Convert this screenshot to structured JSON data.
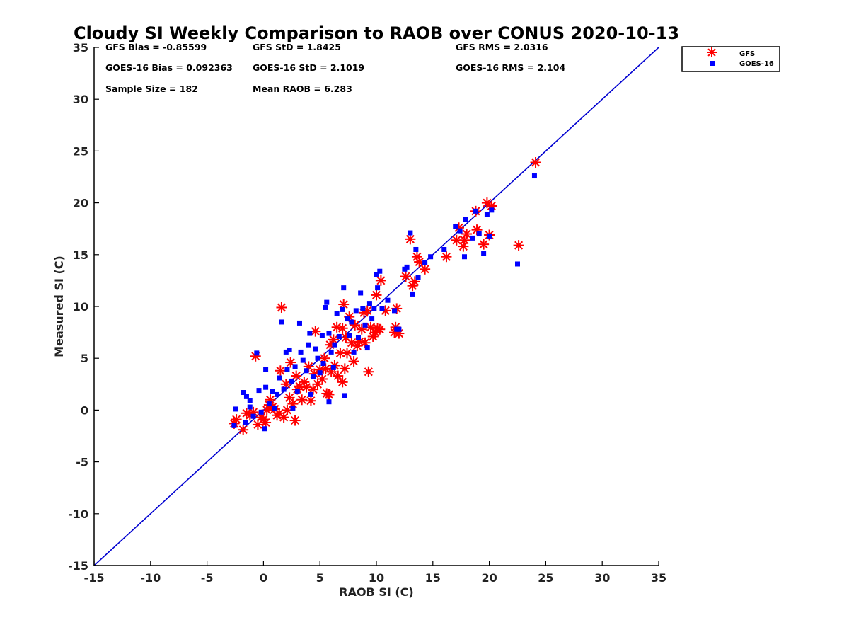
{
  "chart_data": {
    "type": "scatter",
    "title": "Cloudy SI Weekly Comparison to RAOB over CONUS 2020-10-13",
    "xlabel": "RAOB SI (C)",
    "ylabel": "Measured SI (C)",
    "xlim": [
      -15,
      35
    ],
    "ylim": [
      -15,
      35
    ],
    "xticks": [
      -15,
      -10,
      -5,
      0,
      5,
      10,
      15,
      20,
      25,
      30,
      35
    ],
    "yticks": [
      -15,
      -10,
      -5,
      0,
      5,
      10,
      15,
      20,
      25,
      30,
      35
    ],
    "reference_line": {
      "from": [
        -15,
        -15
      ],
      "to": [
        35,
        35
      ],
      "color": "#0000d0"
    },
    "legend_position": "top-right, outside plot",
    "stats": [
      "GFS Bias = -0.85599",
      "GFS StD = 1.8425",
      "GFS RMS = 2.0316",
      "GOES-16 Bias = 0.092363",
      "GOES-16 StD = 2.1019",
      "GOES-16 RMS = 2.104",
      "Sample Size = 182",
      "Mean RAOB = 6.283"
    ],
    "series": [
      {
        "name": "GFS",
        "marker": "asterisk",
        "color": "#ff0000",
        "points": [
          [
            -2.6,
            -1.3
          ],
          [
            -2.4,
            -0.9
          ],
          [
            -1.8,
            -1.9
          ],
          [
            -1.5,
            -0.3
          ],
          [
            -1.2,
            -0.5
          ],
          [
            -0.9,
            -0.2
          ],
          [
            -0.7,
            5.2
          ],
          [
            -0.5,
            -1.4
          ],
          [
            -0.2,
            -0.7
          ],
          [
            0.0,
            -0.9
          ],
          [
            0.2,
            -1.2
          ],
          [
            0.3,
            0.0
          ],
          [
            0.5,
            0.5
          ],
          [
            0.6,
            1.0
          ],
          [
            0.8,
            0.3
          ],
          [
            1.0,
            0.1
          ],
          [
            1.2,
            -0.5
          ],
          [
            1.4,
            -0.3
          ],
          [
            1.5,
            3.8
          ],
          [
            1.6,
            9.9
          ],
          [
            1.8,
            -0.7
          ],
          [
            2.0,
            2.5
          ],
          [
            2.1,
            0.0
          ],
          [
            2.3,
            1.2
          ],
          [
            2.4,
            4.6
          ],
          [
            2.6,
            0.6
          ],
          [
            2.8,
            -1.0
          ],
          [
            2.9,
            3.3
          ],
          [
            3.0,
            2.0
          ],
          [
            3.2,
            2.3
          ],
          [
            3.4,
            1.0
          ],
          [
            3.6,
            2.7
          ],
          [
            3.8,
            2.2
          ],
          [
            4.0,
            4.2
          ],
          [
            4.2,
            0.9
          ],
          [
            4.4,
            2.0
          ],
          [
            4.5,
            3.5
          ],
          [
            4.6,
            7.6
          ],
          [
            4.8,
            2.5
          ],
          [
            5.0,
            3.9
          ],
          [
            5.2,
            3.0
          ],
          [
            5.4,
            5.0
          ],
          [
            5.5,
            4.0
          ],
          [
            5.6,
            1.6
          ],
          [
            5.8,
            1.5
          ],
          [
            5.9,
            6.3
          ],
          [
            6.0,
            3.7
          ],
          [
            6.2,
            6.8
          ],
          [
            6.3,
            4.3
          ],
          [
            6.5,
            8.0
          ],
          [
            6.6,
            3.3
          ],
          [
            6.8,
            5.5
          ],
          [
            7.0,
            2.7
          ],
          [
            7.0,
            7.9
          ],
          [
            7.1,
            10.2
          ],
          [
            7.2,
            4.0
          ],
          [
            7.3,
            7.0
          ],
          [
            7.4,
            5.5
          ],
          [
            7.6,
            9.0
          ],
          [
            7.8,
            6.5
          ],
          [
            8.0,
            4.7
          ],
          [
            8.1,
            8.2
          ],
          [
            8.3,
            6.2
          ],
          [
            8.5,
            6.6
          ],
          [
            8.7,
            7.8
          ],
          [
            8.9,
            9.4
          ],
          [
            9.0,
            6.5
          ],
          [
            9.2,
            9.6
          ],
          [
            9.3,
            3.7
          ],
          [
            9.5,
            8.0
          ],
          [
            9.7,
            7.1
          ],
          [
            9.9,
            7.5
          ],
          [
            10.0,
            11.1
          ],
          [
            10.1,
            7.9
          ],
          [
            10.3,
            7.8
          ],
          [
            10.4,
            12.5
          ],
          [
            10.8,
            9.6
          ],
          [
            11.6,
            7.5
          ],
          [
            11.7,
            8.0
          ],
          [
            11.8,
            9.8
          ],
          [
            12.0,
            7.4
          ],
          [
            12.6,
            12.9
          ],
          [
            13.0,
            16.5
          ],
          [
            13.2,
            12.0
          ],
          [
            13.4,
            12.4
          ],
          [
            13.6,
            14.8
          ],
          [
            13.8,
            14.3
          ],
          [
            14.3,
            13.6
          ],
          [
            16.2,
            14.8
          ],
          [
            17.1,
            16.4
          ],
          [
            17.3,
            17.6
          ],
          [
            17.7,
            15.8
          ],
          [
            17.8,
            16.4
          ],
          [
            18.0,
            17.0
          ],
          [
            18.8,
            19.2
          ],
          [
            18.9,
            17.4
          ],
          [
            19.5,
            16.0
          ],
          [
            19.8,
            20.0
          ],
          [
            20.0,
            16.9
          ],
          [
            20.2,
            19.7
          ],
          [
            22.6,
            15.9
          ],
          [
            24.1,
            23.9
          ]
        ]
      },
      {
        "name": "GOES-16",
        "marker": "square",
        "color": "#0000ff",
        "points": [
          [
            -2.5,
            0.1
          ],
          [
            -2.6,
            -1.5
          ],
          [
            -1.8,
            1.7
          ],
          [
            -1.6,
            -1.2
          ],
          [
            -1.5,
            1.3
          ],
          [
            -1.2,
            0.9
          ],
          [
            -1.2,
            0.3
          ],
          [
            -0.9,
            -0.6
          ],
          [
            -0.6,
            5.5
          ],
          [
            -0.4,
            1.9
          ],
          [
            -0.2,
            -0.2
          ],
          [
            0.1,
            -1.8
          ],
          [
            0.2,
            3.9
          ],
          [
            0.2,
            2.2
          ],
          [
            0.5,
            0.6
          ],
          [
            0.8,
            1.8
          ],
          [
            1.0,
            0.2
          ],
          [
            1.2,
            1.5
          ],
          [
            1.4,
            3.1
          ],
          [
            1.6,
            8.5
          ],
          [
            1.8,
            2.0
          ],
          [
            2.0,
            5.6
          ],
          [
            2.1,
            3.9
          ],
          [
            2.3,
            5.8
          ],
          [
            2.5,
            2.8
          ],
          [
            2.6,
            0.2
          ],
          [
            2.8,
            4.2
          ],
          [
            3.0,
            1.8
          ],
          [
            3.2,
            8.4
          ],
          [
            3.3,
            5.6
          ],
          [
            3.5,
            4.8
          ],
          [
            3.8,
            3.8
          ],
          [
            4.0,
            6.3
          ],
          [
            4.1,
            7.4
          ],
          [
            4.2,
            1.5
          ],
          [
            4.4,
            3.2
          ],
          [
            4.6,
            5.9
          ],
          [
            4.8,
            5.0
          ],
          [
            5.0,
            3.6
          ],
          [
            5.2,
            7.2
          ],
          [
            5.3,
            4.5
          ],
          [
            5.5,
            9.9
          ],
          [
            5.6,
            10.4
          ],
          [
            5.8,
            0.8
          ],
          [
            5.8,
            7.4
          ],
          [
            6.0,
            5.6
          ],
          [
            6.2,
            4.1
          ],
          [
            6.3,
            6.3
          ],
          [
            6.5,
            9.3
          ],
          [
            6.7,
            7.1
          ],
          [
            7.0,
            9.7
          ],
          [
            7.1,
            11.8
          ],
          [
            7.2,
            1.4
          ],
          [
            7.4,
            8.8
          ],
          [
            7.6,
            7.2
          ],
          [
            7.8,
            8.5
          ],
          [
            8.0,
            5.6
          ],
          [
            8.2,
            9.6
          ],
          [
            8.4,
            7.0
          ],
          [
            8.6,
            11.3
          ],
          [
            8.8,
            9.8
          ],
          [
            9.0,
            8.2
          ],
          [
            9.2,
            6.0
          ],
          [
            9.4,
            10.3
          ],
          [
            9.6,
            8.8
          ],
          [
            9.8,
            9.8
          ],
          [
            10.0,
            13.1
          ],
          [
            10.1,
            11.8
          ],
          [
            10.3,
            13.4
          ],
          [
            10.5,
            9.8
          ],
          [
            11.0,
            10.6
          ],
          [
            11.6,
            9.6
          ],
          [
            11.8,
            7.8
          ],
          [
            12.0,
            7.8
          ],
          [
            12.5,
            13.6
          ],
          [
            12.7,
            13.8
          ],
          [
            13.0,
            17.1
          ],
          [
            13.2,
            11.2
          ],
          [
            13.5,
            15.5
          ],
          [
            13.7,
            12.8
          ],
          [
            14.3,
            14.2
          ],
          [
            14.8,
            14.8
          ],
          [
            16.0,
            15.5
          ],
          [
            17.0,
            17.7
          ],
          [
            17.4,
            17.3
          ],
          [
            17.8,
            14.8
          ],
          [
            17.9,
            18.4
          ],
          [
            18.5,
            16.6
          ],
          [
            18.8,
            19.2
          ],
          [
            19.1,
            17.0
          ],
          [
            19.5,
            15.1
          ],
          [
            19.8,
            18.9
          ],
          [
            20.0,
            16.8
          ],
          [
            20.2,
            19.3
          ],
          [
            22.5,
            14.1
          ],
          [
            24.0,
            22.6
          ]
        ]
      }
    ]
  }
}
